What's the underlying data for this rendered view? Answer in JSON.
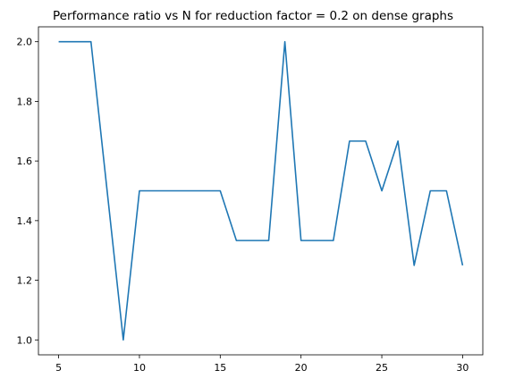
{
  "chart_data": {
    "type": "line",
    "title": "Performance ratio vs N for reduction factor = 0.2 on dense graphs",
    "xlabel": "",
    "ylabel": "",
    "x": [
      5,
      6,
      7,
      8,
      9,
      10,
      11,
      12,
      13,
      14,
      15,
      16,
      17,
      18,
      19,
      20,
      21,
      22,
      23,
      24,
      25,
      26,
      27,
      28,
      29,
      30
    ],
    "series": [
      {
        "values": [
          2.0,
          2.0,
          2.0,
          1.5,
          1.0,
          1.5,
          1.5,
          1.5,
          1.5,
          1.5,
          1.5,
          1.3333,
          1.3333,
          1.3333,
          2.0,
          1.3333,
          1.3333,
          1.3333,
          1.6667,
          1.6667,
          1.5,
          1.6667,
          1.25,
          1.5,
          1.5,
          1.25
        ],
        "color": "#1f77b4"
      }
    ],
    "xlim": [
      3.75,
      31.25
    ],
    "ylim": [
      0.95,
      2.05
    ],
    "xticks": [
      5,
      10,
      15,
      20,
      25,
      30
    ],
    "yticks": [
      1.0,
      1.2,
      1.4,
      1.6,
      1.8,
      2.0
    ],
    "xtick_labels": [
      "5",
      "10",
      "15",
      "20",
      "25",
      "30"
    ],
    "ytick_labels": [
      "1.0",
      "1.2",
      "1.4",
      "1.6",
      "1.8",
      "2.0"
    ],
    "grid": false,
    "legend": "none"
  }
}
